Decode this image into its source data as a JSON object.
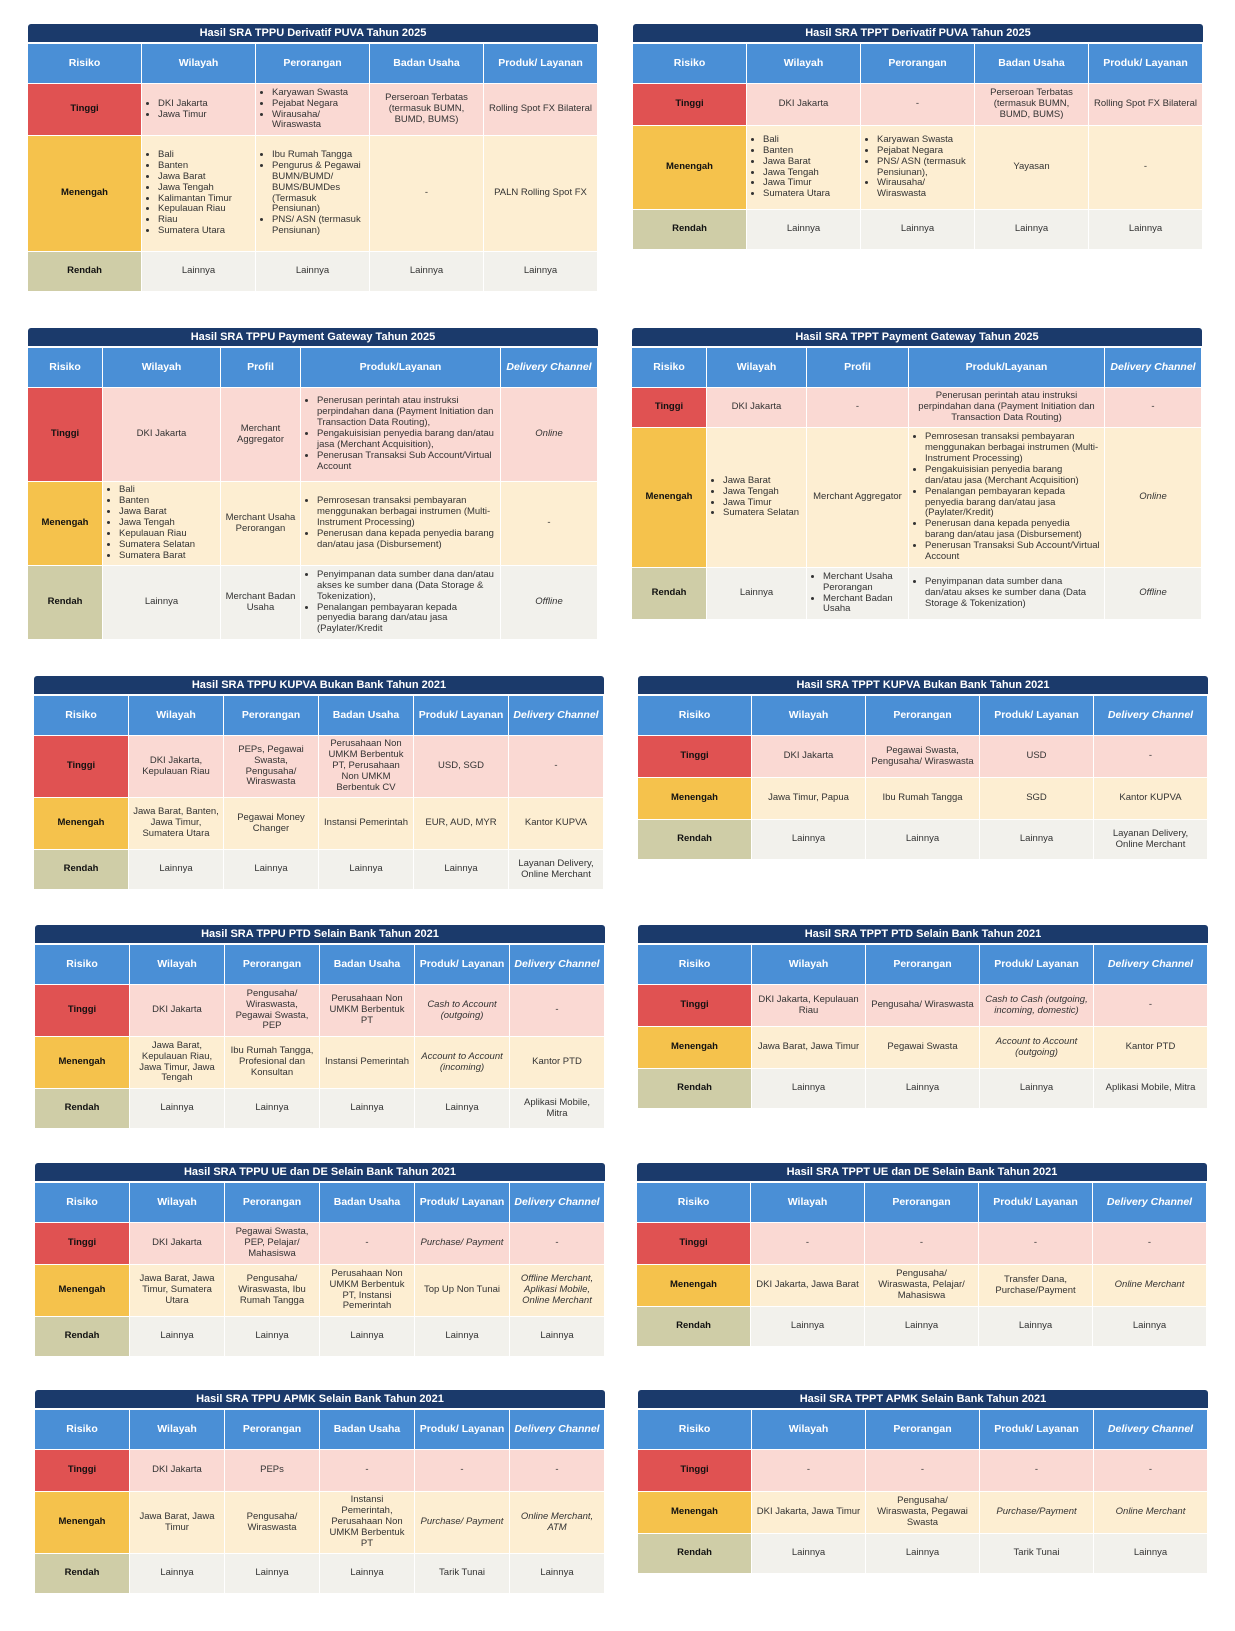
{
  "tables": [
    {
      "title": "Hasil SRA TPPU Derivatif PUVA Tahun 2025",
      "headers": [
        "Risiko",
        "Wilayah",
        "Perorangan",
        "Badan Usaha",
        "Produk/ Layanan"
      ],
      "rows": [
        {
          "risk": "Tinggi",
          "cells": [
            [
              "DKI Jakarta",
              "Jawa Timur"
            ],
            [
              "Karyawan Swasta",
              "Pejabat Negara",
              "Wirausaha/ Wiraswasta"
            ],
            "Perseroan Terbatas (termasuk BUMN, BUMD, BUMS)",
            "Rolling Spot FX Bilateral"
          ]
        },
        {
          "risk": "Menengah",
          "cells": [
            [
              "Bali",
              "Banten",
              "Jawa Barat",
              "Jawa Tengah",
              "Kalimantan Timur",
              "Kepulauan Riau",
              "Riau",
              "Sumatera Utara"
            ],
            [
              "Ibu Rumah Tangga",
              "Pengurus & Pegawai BUMN/BUMD/ BUMS/BUMDes (Termasuk Pensiunan)",
              "PNS/ ASN (termasuk Pensiunan)"
            ],
            "-",
            "PALN Rolling Spot FX"
          ]
        },
        {
          "risk": "Rendah",
          "cells": [
            "Lainnya",
            "Lainnya",
            "Lainnya",
            "Lainnya"
          ]
        }
      ]
    },
    {
      "title": "Hasil SRA TPPT Derivatif PUVA Tahun 2025",
      "headers": [
        "Risiko",
        "Wilayah",
        "Perorangan",
        "Badan Usaha",
        "Produk/ Layanan"
      ],
      "rows": [
        {
          "risk": "Tinggi",
          "cells": [
            "DKI Jakarta",
            "-",
            "Perseroan Terbatas (termasuk BUMN, BUMD, BUMS)",
            "Rolling Spot FX Bilateral"
          ]
        },
        {
          "risk": "Menengah",
          "cells": [
            [
              "Bali",
              "Banten",
              "Jawa Barat",
              "Jawa Tengah",
              "Jawa Timur",
              "Sumatera Utara"
            ],
            [
              "Karyawan Swasta",
              "Pejabat Negara",
              "PNS/ ASN (termasuk Pensiunan),",
              "Wirausaha/ Wiraswasta"
            ],
            "Yayasan",
            "-"
          ]
        },
        {
          "risk": "Rendah",
          "cells": [
            "Lainnya",
            "Lainnya",
            "Lainnya",
            "Lainnya"
          ]
        }
      ]
    },
    {
      "title": "Hasil SRA TPPU Payment Gateway Tahun 2025",
      "headers": [
        "Risiko",
        "Wilayah",
        "Profil",
        "Produk/Layanan",
        "Delivery Channel"
      ],
      "rows": [
        {
          "risk": "Tinggi",
          "cells": [
            "DKI Jakarta",
            "Merchant Aggregator",
            [
              "Penerusan perintah atau instruksi perpindahan dana (Payment Initiation dan Transaction Data Routing),",
              "Pengakuisisian penyedia barang dan/atau jasa (Merchant Acquisition),",
              "Penerusan Transaksi Sub Account/Virtual Account"
            ],
            "Online"
          ]
        },
        {
          "risk": "Menengah",
          "cells": [
            [
              "Bali",
              "Banten",
              "Jawa Barat",
              "Jawa Tengah",
              "Kepulauan Riau",
              "Sumatera Selatan",
              "Sumatera Barat"
            ],
            "Merchant Usaha Perorangan",
            [
              "Pemrosesan transaksi pembayaran menggunakan berbagai instrumen (Multi-Instrument Processing)",
              "Penerusan dana kepada penyedia barang dan/atau jasa (Disbursement)"
            ],
            "-"
          ]
        },
        {
          "risk": "Rendah",
          "cells": [
            "Lainnya",
            "Merchant Badan Usaha",
            [
              "Penyimpanan data sumber dana dan/atau akses ke sumber dana (Data Storage & Tokenization),",
              "Penalangan pembayaran kepada penyedia barang dan/atau jasa (Paylater/Kredit"
            ],
            "Offline"
          ]
        }
      ]
    },
    {
      "title": "Hasil SRA TPPT Payment Gateway Tahun 2025",
      "headers": [
        "Risiko",
        "Wilayah",
        "Profil",
        "Produk/Layanan",
        "Delivery Channel"
      ],
      "rows": [
        {
          "risk": "Tinggi",
          "cells": [
            "DKI Jakarta",
            "-",
            "Penerusan perintah atau instruksi perpindahan dana (Payment Initiation dan Transaction Data Routing)",
            "-"
          ]
        },
        {
          "risk": "Menengah",
          "cells": [
            [
              "Jawa Barat",
              "Jawa Tengah",
              "Jawa Timur",
              "Sumatera Selatan"
            ],
            "Merchant Aggregator",
            [
              "Pemrosesan transaksi pembayaran menggunakan berbagai instrumen (Multi-Instrument Processing)",
              "Pengakuisisian penyedia barang dan/atau jasa (Merchant Acquisition)",
              "Penalangan pembayaran kepada penyedia barang dan/atau jasa (Paylater/Kredit)",
              "Penerusan dana kepada penyedia barang dan/atau jasa (Disbursement)",
              "Penerusan Transaksi Sub Account/Virtual Account"
            ],
            "Online"
          ]
        },
        {
          "risk": "Rendah",
          "cells": [
            "Lainnya",
            [
              "Merchant Usaha Perorangan",
              "Merchant Badan Usaha"
            ],
            [
              "Penyimpanan data sumber dana dan/atau akses ke sumber dana (Data Storage & Tokenization)"
            ],
            "Offline"
          ]
        }
      ]
    },
    {
      "title": "Hasil SRA TPPU KUPVA Bukan Bank Tahun 2021",
      "headers": [
        "Risiko",
        "Wilayah",
        "Perorangan",
        "Badan Usaha",
        "Produk/ Layanan",
        "Delivery Channel"
      ],
      "rows": [
        {
          "risk": "Tinggi",
          "cells": [
            "DKI Jakarta, Kepulauan Riau",
            "PEPs, Pegawai Swasta, Pengusaha/ Wiraswasta",
            "Perusahaan Non UMKM Berbentuk PT, Perusahaan Non UMKM Berbentuk CV",
            "USD, SGD",
            "-"
          ]
        },
        {
          "risk": "Menengah",
          "cells": [
            "Jawa Barat, Banten, Jawa Timur, Sumatera Utara",
            "Pegawai Money Changer",
            "Instansi Pemerintah",
            "EUR, AUD, MYR",
            "Kantor KUPVA"
          ]
        },
        {
          "risk": "Rendah",
          "cells": [
            "Lainnya",
            "Lainnya",
            "Lainnya",
            "Lainnya",
            "Layanan Delivery, Online Merchant"
          ]
        }
      ]
    },
    {
      "title": "Hasil SRA TPPT KUPVA Bukan Bank Tahun 2021",
      "headers": [
        "Risiko",
        "Wilayah",
        "Perorangan",
        "Produk/ Layanan",
        "Delivery Channel"
      ],
      "rows": [
        {
          "risk": "Tinggi",
          "cells": [
            "DKI Jakarta",
            "Pegawai Swasta, Pengusaha/ Wiraswasta",
            "USD",
            "-"
          ]
        },
        {
          "risk": "Menengah",
          "cells": [
            "Jawa Timur, Papua",
            "Ibu Rumah Tangga",
            "SGD",
            "Kantor KUPVA"
          ]
        },
        {
          "risk": "Rendah",
          "cells": [
            "Lainnya",
            "Lainnya",
            "Lainnya",
            "Layanan Delivery, Online Merchant"
          ]
        }
      ]
    },
    {
      "title": "Hasil SRA TPPU PTD Selain Bank Tahun 2021",
      "headers": [
        "Risiko",
        "Wilayah",
        "Perorangan",
        "Badan Usaha",
        "Produk/ Layanan",
        "Delivery Channel"
      ],
      "rows": [
        {
          "risk": "Tinggi",
          "cells": [
            "DKI Jakarta",
            "Pengusaha/ Wiraswasta, Pegawai Swasta, PEP",
            "Perusahaan Non UMKM Berbentuk PT",
            "Cash to Account (outgoing)",
            "-"
          ]
        },
        {
          "risk": "Menengah",
          "cells": [
            "Jawa Barat, Kepulauan Riau, Jawa Timur, Jawa Tengah",
            "Ibu Rumah Tangga, Profesional dan Konsultan",
            "Instansi Pemerintah",
            "Account to Account (incoming)",
            "Kantor PTD"
          ]
        },
        {
          "risk": "Rendah",
          "cells": [
            "Lainnya",
            "Lainnya",
            "Lainnya",
            "Lainnya",
            "Aplikasi Mobile, Mitra"
          ]
        }
      ]
    },
    {
      "title": "Hasil SRA TPPT PTD Selain Bank Tahun 2021",
      "headers": [
        "Risiko",
        "Wilayah",
        "Perorangan",
        "Produk/ Layanan",
        "Delivery Channel"
      ],
      "rows": [
        {
          "risk": "Tinggi",
          "cells": [
            "DKI Jakarta, Kepulauan Riau",
            "Pengusaha/ Wiraswasta",
            "Cash to Cash (outgoing, incoming, domestic)",
            "-"
          ]
        },
        {
          "risk": "Menengah",
          "cells": [
            "Jawa Barat, Jawa Timur",
            "Pegawai Swasta",
            "Account to Account (outgoing)",
            "Kantor PTD"
          ]
        },
        {
          "risk": "Rendah",
          "cells": [
            "Lainnya",
            "Lainnya",
            "Lainnya",
            "Aplikasi Mobile, Mitra"
          ]
        }
      ]
    },
    {
      "title": "Hasil SRA TPPU UE dan DE Selain Bank Tahun 2021",
      "headers": [
        "Risiko",
        "Wilayah",
        "Perorangan",
        "Badan Usaha",
        "Produk/ Layanan",
        "Delivery Channel"
      ],
      "rows": [
        {
          "risk": "Tinggi",
          "cells": [
            "DKI Jakarta",
            "Pegawai Swasta, PEP, Pelajar/ Mahasiswa",
            "-",
            "Purchase/ Payment",
            "-"
          ]
        },
        {
          "risk": "Menengah",
          "cells": [
            "Jawa Barat, Jawa Timur, Sumatera Utara",
            "Pengusaha/ Wiraswasta, Ibu Rumah Tangga",
            "Perusahaan Non UMKM Berbentuk PT, Instansi Pemerintah",
            "Top Up Non Tunai",
            "Offline Merchant, Aplikasi Mobile, Online Merchant"
          ]
        },
        {
          "risk": "Rendah",
          "cells": [
            "Lainnya",
            "Lainnya",
            "Lainnya",
            "Lainnya",
            "Lainnya"
          ]
        }
      ]
    },
    {
      "title": "Hasil SRA TPPT UE dan DE Selain Bank Tahun 2021",
      "headers": [
        "Risiko",
        "Wilayah",
        "Perorangan",
        "Produk/ Layanan",
        "Delivery Channel"
      ],
      "rows": [
        {
          "risk": "Tinggi",
          "cells": [
            "-",
            "-",
            "-",
            "-"
          ]
        },
        {
          "risk": "Menengah",
          "cells": [
            "DKI Jakarta, Jawa Barat",
            "Pengusaha/ Wiraswasta, Pelajar/ Mahasiswa",
            "Transfer Dana, Purchase/Payment",
            "Online Merchant"
          ]
        },
        {
          "risk": "Rendah",
          "cells": [
            "Lainnya",
            "Lainnya",
            "Lainnya",
            "Lainnya"
          ]
        }
      ]
    },
    {
      "title": "Hasil SRA TPPU APMK Selain Bank Tahun 2021",
      "headers": [
        "Risiko",
        "Wilayah",
        "Perorangan",
        "Badan Usaha",
        "Produk/ Layanan",
        "Delivery Channel"
      ],
      "rows": [
        {
          "risk": "Tinggi",
          "cells": [
            "DKI Jakarta",
            "PEPs",
            "-",
            "-",
            "-"
          ]
        },
        {
          "risk": "Menengah",
          "cells": [
            "Jawa Barat, Jawa Timur",
            "Pengusaha/ Wiraswasta",
            "Instansi Pemerintah, Perusahaan Non UMKM Berbentuk PT",
            "Purchase/ Payment",
            "Online Merchant, ATM"
          ]
        },
        {
          "risk": "Rendah",
          "cells": [
            "Lainnya",
            "Lainnya",
            "Lainnya",
            "Tarik Tunai",
            "Lainnya"
          ]
        }
      ]
    },
    {
      "title": "Hasil SRA TPPT APMK Selain Bank Tahun 2021",
      "headers": [
        "Risiko",
        "Wilayah",
        "Perorangan",
        "Produk/ Layanan",
        "Delivery Channel"
      ],
      "rows": [
        {
          "risk": "Tinggi",
          "cells": [
            "-",
            "-",
            "-",
            "-"
          ]
        },
        {
          "risk": "Menengah",
          "cells": [
            "DKI Jakarta, Jawa Timur",
            "Pengusaha/ Wiraswasta, Pegawai Swasta",
            "Purchase/Payment",
            "Online Merchant"
          ]
        },
        {
          "risk": "Rendah",
          "cells": [
            "Lainnya",
            "Lainnya",
            "Tarik Tunai",
            "Lainnya"
          ]
        }
      ]
    }
  ]
}
